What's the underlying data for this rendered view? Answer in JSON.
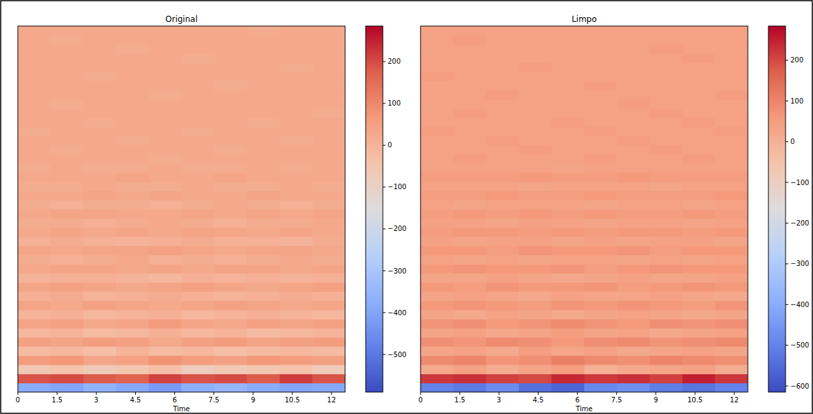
{
  "chart_data": [
    {
      "type": "heatmap",
      "title": "Original",
      "xlabel": "Time",
      "xlim": [
        0,
        12.52
      ],
      "xticks": [
        0,
        1.5,
        3,
        4.5,
        6,
        7.5,
        9,
        10.5,
        12
      ],
      "tick_labels": "x",
      "color_range": [
        -590,
        285
      ],
      "color_ticks": [
        {
          "value": 200,
          "label": "200"
        },
        {
          "value": 100,
          "label": "100"
        },
        {
          "value": 0,
          "label": "0"
        },
        {
          "value": -100,
          "label": "−100"
        },
        {
          "value": -200,
          "label": "−200"
        },
        {
          "value": -300,
          "label": "−300"
        },
        {
          "value": -400,
          "label": "−400"
        },
        {
          "value": -500,
          "label": "−500"
        }
      ],
      "cells": [
        [
          -380,
          -400,
          -360,
          -390,
          -420,
          -370,
          -350,
          -380,
          -400,
          -390
        ],
        [
          190,
          200,
          180,
          170,
          210,
          190,
          200,
          180,
          220,
          190
        ],
        [
          -60,
          -40,
          -70,
          -50,
          -30,
          -80,
          -60,
          -50,
          -40,
          -70
        ],
        [
          60,
          70,
          40,
          50,
          80,
          60,
          50,
          70,
          60,
          50
        ],
        [
          -20,
          -10,
          -30,
          0,
          -20,
          -10,
          -30,
          -20,
          -10,
          -20
        ],
        [
          50,
          40,
          60,
          50,
          30,
          50,
          60,
          40,
          50,
          60
        ],
        [
          -10,
          0,
          -20,
          -10,
          10,
          -10,
          0,
          -20,
          -10,
          0
        ],
        [
          40,
          50,
          30,
          40,
          60,
          40,
          30,
          50,
          40,
          50
        ],
        [
          0,
          10,
          -10,
          0,
          10,
          -10,
          0,
          10,
          0,
          -10
        ],
        [
          40,
          30,
          50,
          40,
          30,
          40,
          50,
          40,
          30,
          40
        ],
        [
          10,
          20,
          0,
          10,
          20,
          10,
          0,
          10,
          20,
          10
        ],
        [
          40,
          50,
          40,
          30,
          40,
          50,
          40,
          30,
          40,
          50
        ],
        [
          0,
          10,
          10,
          0,
          -10,
          10,
          0,
          10,
          0,
          10
        ],
        [
          30,
          40,
          40,
          30,
          40,
          30,
          40,
          40,
          30,
          40
        ],
        [
          20,
          10,
          20,
          30,
          10,
          20,
          10,
          20,
          30,
          20
        ],
        [
          40,
          30,
          40,
          40,
          50,
          40,
          30,
          40,
          40,
          30
        ],
        [
          10,
          20,
          10,
          0,
          10,
          20,
          10,
          10,
          0,
          20
        ],
        [
          30,
          40,
          30,
          40,
          30,
          40,
          40,
          30,
          40,
          30
        ],
        [
          20,
          20,
          10,
          20,
          30,
          20,
          10,
          20,
          20,
          30
        ],
        [
          30,
          40,
          40,
          30,
          30,
          40,
          30,
          40,
          30,
          40
        ],
        [
          20,
          10,
          20,
          20,
          10,
          20,
          30,
          20,
          10,
          20
        ],
        [
          30,
          30,
          40,
          30,
          40,
          30,
          30,
          40,
          30,
          30
        ],
        [
          20,
          20,
          30,
          20,
          20,
          30,
          20,
          20,
          30,
          20
        ],
        [
          30,
          30,
          30,
          40,
          30,
          30,
          40,
          30,
          30,
          30
        ],
        [
          20,
          30,
          20,
          20,
          30,
          20,
          20,
          30,
          20,
          30
        ],
        [
          30,
          30,
          30,
          30,
          20,
          30,
          30,
          30,
          30,
          30
        ],
        [
          30,
          20,
          30,
          30,
          30,
          30,
          20,
          30,
          30,
          30
        ],
        [
          30,
          30,
          30,
          20,
          30,
          30,
          30,
          30,
          20,
          30
        ],
        [
          20,
          30,
          30,
          30,
          30,
          20,
          30,
          30,
          30,
          30
        ],
        [
          30,
          30,
          20,
          30,
          30,
          30,
          30,
          20,
          30,
          30
        ],
        [
          30,
          30,
          30,
          30,
          30,
          30,
          30,
          30,
          30,
          20
        ],
        [
          30,
          20,
          30,
          30,
          30,
          30,
          30,
          30,
          30,
          30
        ],
        [
          30,
          30,
          30,
          30,
          20,
          30,
          30,
          30,
          30,
          30
        ],
        [
          30,
          30,
          30,
          30,
          30,
          30,
          20,
          30,
          30,
          30
        ],
        [
          30,
          30,
          20,
          30,
          30,
          30,
          30,
          30,
          30,
          30
        ],
        [
          30,
          30,
          30,
          30,
          30,
          30,
          30,
          30,
          20,
          30
        ],
        [
          30,
          30,
          30,
          30,
          30,
          20,
          30,
          30,
          30,
          30
        ],
        [
          30,
          30,
          30,
          20,
          30,
          30,
          30,
          30,
          30,
          30
        ],
        [
          30,
          20,
          30,
          30,
          30,
          30,
          30,
          30,
          30,
          30
        ],
        [
          30,
          30,
          30,
          30,
          30,
          30,
          30,
          20,
          30,
          30
        ]
      ]
    },
    {
      "type": "heatmap",
      "title": "Limpo",
      "xlabel": "Time",
      "xlim": [
        0,
        12.52
      ],
      "xticks": [
        0,
        1.5,
        3,
        4.5,
        6,
        7.5,
        9,
        10.5,
        12
      ],
      "tick_labels": "x",
      "color_range": [
        -615,
        284
      ],
      "color_ticks": [
        {
          "value": 200,
          "label": "200"
        },
        {
          "value": 100,
          "label": "100"
        },
        {
          "value": 0,
          "label": "0"
        },
        {
          "value": -100,
          "label": "−100"
        },
        {
          "value": -200,
          "label": "−200"
        },
        {
          "value": -300,
          "label": "−300"
        },
        {
          "value": -400,
          "label": "−400"
        },
        {
          "value": -500,
          "label": "−500"
        },
        {
          "value": -600,
          "label": "−600"
        }
      ],
      "cells": [
        [
          -500,
          -520,
          -480,
          -540,
          -560,
          -490,
          -470,
          -510,
          -530,
          -500
        ],
        [
          220,
          230,
          210,
          200,
          240,
          220,
          230,
          210,
          250,
          220
        ],
        [
          20,
          40,
          10,
          30,
          50,
          0,
          20,
          30,
          40,
          10
        ],
        [
          90,
          100,
          70,
          80,
          110,
          90,
          80,
          100,
          90,
          80
        ],
        [
          30,
          40,
          20,
          50,
          30,
          40,
          20,
          30,
          40,
          30
        ],
        [
          80,
          70,
          90,
          80,
          60,
          80,
          90,
          70,
          80,
          90
        ],
        [
          30,
          40,
          20,
          30,
          50,
          30,
          40,
          20,
          30,
          40
        ],
        [
          70,
          80,
          60,
          70,
          90,
          70,
          60,
          80,
          70,
          80
        ],
        [
          30,
          20,
          40,
          30,
          20,
          30,
          40,
          30,
          20,
          30
        ],
        [
          60,
          70,
          60,
          50,
          70,
          60,
          70,
          60,
          50,
          70
        ],
        [
          30,
          40,
          30,
          20,
          40,
          30,
          30,
          40,
          30,
          20
        ],
        [
          60,
          50,
          70,
          60,
          60,
          70,
          50,
          60,
          70,
          60
        ],
        [
          30,
          30,
          40,
          30,
          20,
          30,
          40,
          30,
          30,
          40
        ],
        [
          60,
          70,
          60,
          60,
          70,
          50,
          60,
          70,
          60,
          60
        ],
        [
          40,
          30,
          40,
          30,
          40,
          40,
          30,
          40,
          30,
          40
        ],
        [
          60,
          60,
          50,
          70,
          60,
          60,
          70,
          50,
          60,
          60
        ],
        [
          40,
          30,
          40,
          40,
          30,
          40,
          30,
          40,
          40,
          30
        ],
        [
          50,
          60,
          60,
          50,
          60,
          50,
          60,
          60,
          50,
          60
        ],
        [
          40,
          40,
          30,
          40,
          40,
          30,
          40,
          40,
          30,
          40
        ],
        [
          50,
          60,
          50,
          60,
          50,
          60,
          50,
          50,
          60,
          50
        ],
        [
          40,
          30,
          40,
          40,
          40,
          30,
          40,
          40,
          30,
          40
        ],
        [
          50,
          50,
          60,
          50,
          50,
          60,
          50,
          50,
          50,
          60
        ],
        [
          40,
          40,
          40,
          30,
          40,
          40,
          40,
          30,
          40,
          40
        ],
        [
          50,
          50,
          50,
          60,
          50,
          50,
          60,
          50,
          50,
          50
        ],
        [
          40,
          40,
          40,
          40,
          30,
          40,
          40,
          40,
          40,
          40
        ],
        [
          40,
          50,
          40,
          40,
          40,
          50,
          40,
          40,
          50,
          40
        ],
        [
          40,
          40,
          40,
          50,
          40,
          40,
          40,
          50,
          40,
          40
        ],
        [
          40,
          40,
          50,
          40,
          40,
          40,
          50,
          40,
          40,
          40
        ],
        [
          50,
          40,
          40,
          40,
          40,
          50,
          40,
          40,
          40,
          50
        ],
        [
          40,
          40,
          40,
          40,
          50,
          40,
          40,
          40,
          50,
          40
        ],
        [
          40,
          50,
          40,
          40,
          40,
          40,
          40,
          50,
          40,
          40
        ],
        [
          40,
          40,
          40,
          40,
          40,
          40,
          50,
          40,
          40,
          40
        ],
        [
          40,
          40,
          50,
          40,
          40,
          40,
          40,
          40,
          40,
          50
        ],
        [
          40,
          40,
          40,
          40,
          40,
          50,
          40,
          40,
          40,
          40
        ],
        [
          50,
          40,
          40,
          40,
          40,
          40,
          40,
          40,
          40,
          40
        ],
        [
          40,
          40,
          40,
          50,
          40,
          40,
          40,
          40,
          40,
          40
        ],
        [
          40,
          40,
          40,
          40,
          40,
          40,
          40,
          40,
          50,
          40
        ],
        [
          40,
          40,
          40,
          40,
          40,
          40,
          40,
          50,
          40,
          40
        ],
        [
          40,
          50,
          40,
          40,
          40,
          40,
          40,
          40,
          40,
          40
        ],
        [
          40,
          40,
          40,
          40,
          40,
          40,
          40,
          40,
          40,
          40
        ]
      ]
    }
  ]
}
